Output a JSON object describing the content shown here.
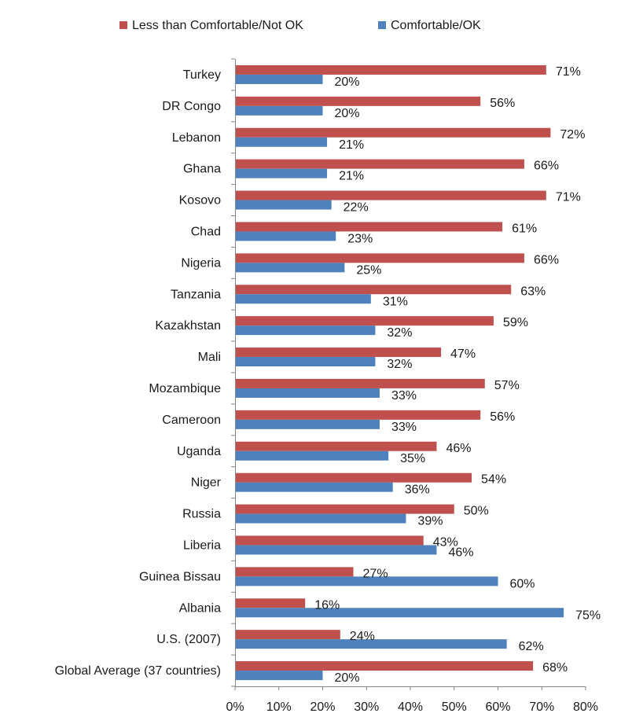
{
  "chart_data": {
    "type": "bar",
    "orientation": "horizontal",
    "categories": [
      "Turkey",
      "DR Congo",
      "Lebanon",
      "Ghana",
      "Kosovo",
      "Chad",
      "Nigeria",
      "Tanzania",
      "Kazakhstan",
      "Mali",
      "Mozambique",
      "Cameroon",
      "Uganda",
      "Niger",
      "Russia",
      "Liberia",
      "Guinea Bissau",
      "Albania",
      "U.S. (2007)",
      "Global Average (37 countries)"
    ],
    "series": [
      {
        "name": "Less than Comfortable/Not OK",
        "color": "#c0504d",
        "values": [
          71,
          56,
          72,
          66,
          71,
          61,
          66,
          63,
          59,
          47,
          57,
          56,
          46,
          54,
          50,
          43,
          27,
          16,
          24,
          68
        ]
      },
      {
        "name": "Comfortable/OK",
        "color": "#4f81bd",
        "values": [
          20,
          20,
          21,
          21,
          22,
          23,
          25,
          31,
          32,
          32,
          33,
          33,
          35,
          36,
          39,
          46,
          60,
          75,
          62,
          20
        ]
      }
    ],
    "xlim": [
      0,
      80
    ],
    "xticks": [
      "0%",
      "10%",
      "20%",
      "30%",
      "40%",
      "50%",
      "60%",
      "70%",
      "80%"
    ],
    "value_suffix": "%",
    "legend_position": "top",
    "grid": false
  }
}
